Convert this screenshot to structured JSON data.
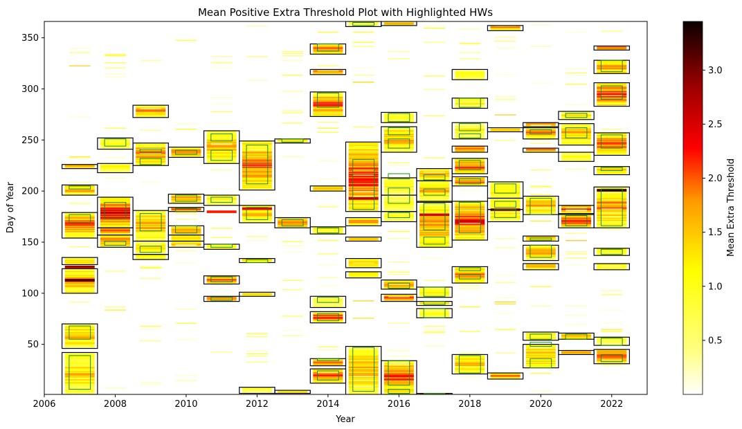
{
  "chart_data": {
    "type": "heatmap",
    "title": "Mean Positive Extra Threshold Plot with Highlighted HWs",
    "xlabel": "Year",
    "ylabel": "Day of Year",
    "xlim": [
      2006,
      2023
    ],
    "ylim": [
      1,
      366
    ],
    "xticks": [
      2006,
      2008,
      2010,
      2012,
      2014,
      2016,
      2018,
      2020,
      2022
    ],
    "yticks": [
      50,
      100,
      150,
      200,
      250,
      300,
      350
    ],
    "colorbar": {
      "label": "Mean Extra Threshold",
      "min": 0,
      "max": 3.45,
      "ticks": [
        0.5,
        1.0,
        1.5,
        2.0,
        2.5,
        3.0
      ],
      "tick_labels": [
        "0.5",
        "1.0",
        "1.5",
        "2.0",
        "2.5",
        "3.0"
      ],
      "colormap": "hot_r"
    },
    "heatwave_boxes_black": [
      [
        2007,
        1,
        42
      ],
      [
        2007,
        46,
        70
      ],
      [
        2007,
        100,
        124
      ],
      [
        2007,
        128,
        135
      ],
      [
        2007,
        154,
        179
      ],
      [
        2007,
        196,
        206
      ],
      [
        2007,
        222,
        226
      ],
      [
        2008,
        145,
        157
      ],
      [
        2008,
        157,
        164
      ],
      [
        2008,
        164,
        194
      ],
      [
        2008,
        218,
        227
      ],
      [
        2008,
        241,
        252
      ],
      [
        2009,
        133,
        138
      ],
      [
        2009,
        138,
        151
      ],
      [
        2009,
        151,
        181
      ],
      [
        2009,
        225,
        247
      ],
      [
        2009,
        272,
        284
      ],
      [
        2010,
        145,
        151
      ],
      [
        2010,
        151,
        157
      ],
      [
        2010,
        157,
        166
      ],
      [
        2010,
        180,
        184
      ],
      [
        2010,
        188,
        197
      ],
      [
        2010,
        233,
        243
      ],
      [
        2011,
        92,
        97
      ],
      [
        2011,
        109,
        117
      ],
      [
        2011,
        143,
        148
      ],
      [
        2011,
        186,
        196
      ],
      [
        2011,
        227,
        259
      ],
      [
        2012,
        2,
        8
      ],
      [
        2012,
        97,
        101
      ],
      [
        2012,
        130,
        134
      ],
      [
        2012,
        169,
        186
      ],
      [
        2012,
        201,
        249
      ],
      [
        2013,
        2,
        5
      ],
      [
        2013,
        164,
        174
      ],
      [
        2013,
        247,
        251
      ],
      [
        2014,
        71,
        82
      ],
      [
        2014,
        86,
        97
      ],
      [
        2014,
        12,
        26
      ],
      [
        2014,
        29,
        36
      ],
      [
        2014,
        158,
        165
      ],
      [
        2014,
        200,
        205
      ],
      [
        2014,
        273,
        297
      ],
      [
        2014,
        314,
        319
      ],
      [
        2014,
        334,
        344
      ],
      [
        2015,
        1,
        48
      ],
      [
        2015,
        115,
        121
      ],
      [
        2015,
        125,
        134
      ],
      [
        2015,
        151,
        155
      ],
      [
        2015,
        166,
        174
      ],
      [
        2015,
        180,
        248
      ],
      [
        2015,
        361,
        366
      ],
      [
        2016,
        1,
        34
      ],
      [
        2016,
        92,
        99
      ],
      [
        2016,
        104,
        113
      ],
      [
        2016,
        170,
        180
      ],
      [
        2016,
        180,
        196
      ],
      [
        2016,
        196,
        213
      ],
      [
        2016,
        238,
        263
      ],
      [
        2016,
        267,
        277
      ],
      [
        2016,
        362,
        366
      ],
      [
        2017,
        1,
        2
      ],
      [
        2017,
        76,
        85
      ],
      [
        2017,
        88,
        92
      ],
      [
        2017,
        96,
        106
      ],
      [
        2017,
        145,
        189
      ],
      [
        2017,
        190,
        210
      ],
      [
        2017,
        210,
        222
      ],
      [
        2018,
        21,
        40
      ],
      [
        2018,
        110,
        126
      ],
      [
        2018,
        152,
        190
      ],
      [
        2018,
        205,
        214
      ],
      [
        2018,
        217,
        232
      ],
      [
        2018,
        238,
        244
      ],
      [
        2018,
        251,
        267
      ],
      [
        2018,
        281,
        291
      ],
      [
        2018,
        309,
        319
      ],
      [
        2019,
        16,
        22
      ],
      [
        2019,
        170,
        182
      ],
      [
        2019,
        182,
        193
      ],
      [
        2019,
        193,
        209
      ],
      [
        2019,
        258,
        262
      ],
      [
        2019,
        357,
        362
      ],
      [
        2020,
        27,
        50
      ],
      [
        2020,
        54,
        62
      ],
      [
        2020,
        123,
        129
      ],
      [
        2020,
        132,
        147
      ],
      [
        2020,
        151,
        156
      ],
      [
        2020,
        177,
        195
      ],
      [
        2020,
        238,
        242
      ],
      [
        2020,
        251,
        262
      ],
      [
        2020,
        263,
        267
      ],
      [
        2021,
        40,
        44
      ],
      [
        2021,
        55,
        61
      ],
      [
        2021,
        164,
        177
      ],
      [
        2021,
        178,
        186
      ],
      [
        2021,
        229,
        238
      ],
      [
        2021,
        245,
        266
      ],
      [
        2021,
        270,
        278
      ],
      [
        2022,
        31,
        45
      ],
      [
        2022,
        49,
        57
      ],
      [
        2022,
        123,
        129
      ],
      [
        2022,
        137,
        144
      ],
      [
        2022,
        164,
        204
      ],
      [
        2022,
        216,
        224
      ],
      [
        2022,
        235,
        257
      ],
      [
        2022,
        283,
        306
      ],
      [
        2022,
        315,
        328
      ],
      [
        2022,
        338,
        342
      ]
    ],
    "heatwave_boxes_green": [
      [
        2007,
        6,
        39
      ],
      [
        2007,
        55,
        68
      ],
      [
        2007,
        169,
        177
      ],
      [
        2007,
        202,
        205
      ],
      [
        2008,
        147,
        151
      ],
      [
        2008,
        173,
        189
      ],
      [
        2008,
        244,
        251
      ],
      [
        2009,
        140,
        146
      ],
      [
        2009,
        161,
        178
      ],
      [
        2009,
        226,
        232
      ],
      [
        2009,
        238,
        241
      ],
      [
        2010,
        159,
        166
      ],
      [
        2010,
        180,
        183
      ],
      [
        2010,
        190,
        196
      ],
      [
        2010,
        236,
        240
      ],
      [
        2011,
        93,
        96
      ],
      [
        2011,
        111,
        116
      ],
      [
        2011,
        145,
        148
      ],
      [
        2011,
        189,
        194
      ],
      [
        2011,
        230,
        240
      ],
      [
        2011,
        249,
        256
      ],
      [
        2012,
        130,
        133
      ],
      [
        2012,
        172,
        184
      ],
      [
        2012,
        207,
        245
      ],
      [
        2013,
        166,
        172
      ],
      [
        2013,
        248,
        251
      ],
      [
        2014,
        15,
        24
      ],
      [
        2014,
        34,
        36
      ],
      [
        2014,
        73,
        80
      ],
      [
        2014,
        91,
        96
      ],
      [
        2014,
        159,
        164
      ],
      [
        2014,
        282,
        296
      ],
      [
        2014,
        337,
        344
      ],
      [
        2015,
        4,
        47
      ],
      [
        2015,
        182,
        231
      ],
      [
        2015,
        362,
        365
      ],
      [
        2016,
        2,
        6
      ],
      [
        2016,
        10,
        34
      ],
      [
        2016,
        105,
        110
      ],
      [
        2016,
        174,
        179
      ],
      [
        2016,
        188,
        203
      ],
      [
        2016,
        212,
        217
      ],
      [
        2016,
        242,
        251
      ],
      [
        2016,
        255,
        262
      ],
      [
        2016,
        268,
        276
      ],
      [
        2017,
        1,
        2
      ],
      [
        2017,
        76,
        85
      ],
      [
        2017,
        89,
        92
      ],
      [
        2017,
        97,
        106
      ],
      [
        2017,
        148,
        155
      ],
      [
        2017,
        162,
        188
      ],
      [
        2017,
        196,
        202
      ],
      [
        2017,
        211,
        216
      ],
      [
        2018,
        22,
        39
      ],
      [
        2018,
        114,
        118
      ],
      [
        2018,
        122,
        125
      ],
      [
        2018,
        159,
        189
      ],
      [
        2018,
        207,
        212
      ],
      [
        2018,
        221,
        230
      ],
      [
        2018,
        252,
        256
      ],
      [
        2018,
        259,
        266
      ],
      [
        2018,
        282,
        291
      ],
      [
        2019,
        174,
        182
      ],
      [
        2019,
        184,
        190
      ],
      [
        2019,
        198,
        207
      ],
      [
        2020,
        27,
        36
      ],
      [
        2020,
        48,
        52
      ],
      [
        2020,
        55,
        60
      ],
      [
        2020,
        135,
        147
      ],
      [
        2020,
        152,
        154
      ],
      [
        2020,
        177,
        193
      ],
      [
        2020,
        256,
        260
      ],
      [
        2021,
        55,
        60
      ],
      [
        2021,
        166,
        176
      ],
      [
        2021,
        252,
        262
      ],
      [
        2021,
        272,
        276
      ],
      [
        2022,
        33,
        40
      ],
      [
        2022,
        49,
        56
      ],
      [
        2022,
        138,
        143
      ],
      [
        2022,
        166,
        202
      ],
      [
        2022,
        220,
        223
      ],
      [
        2022,
        242,
        255
      ],
      [
        2022,
        290,
        303
      ],
      [
        2022,
        317,
        328
      ]
    ],
    "notable_strips": [
      {
        "year": 2007,
        "doy": 112,
        "value": 3.2
      },
      {
        "year": 2007,
        "doy": 125,
        "value": 2.8
      },
      {
        "year": 2011,
        "doy": 179,
        "value": 2.2
      },
      {
        "year": 2012,
        "doy": 182,
        "value": 2.4
      },
      {
        "year": 2015,
        "doy": 192,
        "value": 2.6
      },
      {
        "year": 2017,
        "doy": 176,
        "value": 2.5
      },
      {
        "year": 2019,
        "doy": 181,
        "value": 2.7
      },
      {
        "year": 2022,
        "doy": 200,
        "value": 3.3
      }
    ]
  }
}
